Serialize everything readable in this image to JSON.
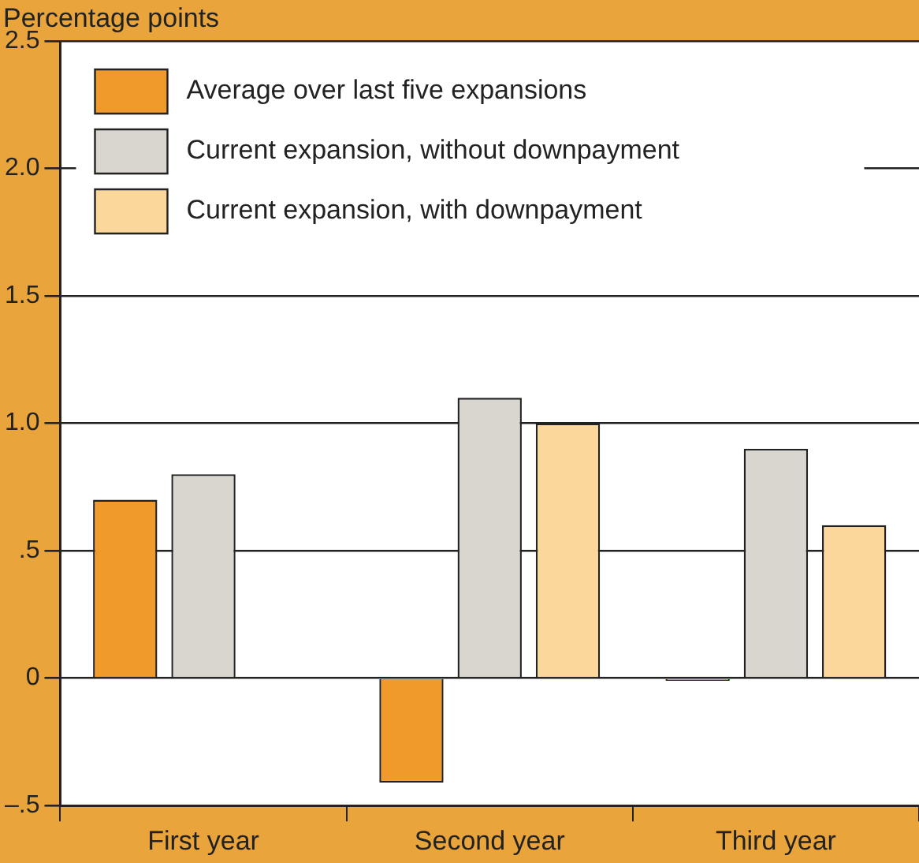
{
  "chart_data": {
    "type": "bar",
    "ylabel": "Percentage points",
    "categories": [
      "First year",
      "Second year",
      "Third year"
    ],
    "series": [
      {
        "name": "Average over last five expansions",
        "color": "#f09a2c",
        "values": [
          0.7,
          -0.41,
          -0.01
        ]
      },
      {
        "name": "Current expansion, without downpayment",
        "color": "#d9d6cf",
        "values": [
          0.8,
          1.1,
          0.9
        ]
      },
      {
        "name": "Current expansion, with downpayment",
        "color": "#fbd79c",
        "values": [
          null,
          1.0,
          0.6
        ]
      }
    ],
    "ylim": [
      -0.5,
      2.5
    ],
    "yticks": [
      {
        "value": -0.5,
        "label": "–.5"
      },
      0,
      {
        "value": 0.5,
        "label": ".5"
      },
      {
        "value": 1,
        "label": "1.0"
      },
      {
        "value": 1.5,
        "label": "1.5"
      },
      {
        "value": 2,
        "label": "2.0"
      },
      {
        "value": 2.5,
        "label": "2.5"
      }
    ],
    "grid": "y",
    "legend": "top left"
  }
}
